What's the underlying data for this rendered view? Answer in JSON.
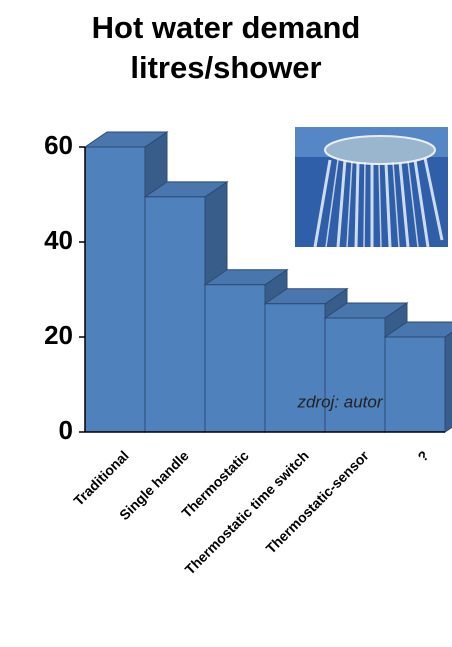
{
  "chart_data": {
    "type": "bar3d",
    "title": "Hot water demand",
    "subtitle": "litres/shower",
    "categories": [
      "Traditional",
      "Single handle",
      "Thermostatic",
      "Thermostatic time switch",
      "Thermostatic-sensor",
      "?"
    ],
    "values": [
      60,
      49.5,
      31,
      27,
      24,
      20
    ],
    "color": "#4f81bd",
    "ylim": [
      0,
      60
    ],
    "yticks": [
      0,
      20,
      40,
      60
    ],
    "annotation": "zdroj: autor"
  }
}
